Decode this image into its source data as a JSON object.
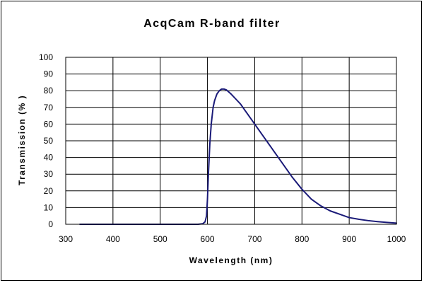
{
  "chart_data": {
    "type": "line",
    "title": "AcqCam R-band filter",
    "xlabel": "Wavelength (nm)",
    "ylabel": "Transmission (% )",
    "xlim": [
      300,
      1000
    ],
    "ylim": [
      0,
      100
    ],
    "xticks": [
      "300",
      "400",
      "500",
      "600",
      "700",
      "800",
      "900",
      "1000"
    ],
    "yticks": [
      "0",
      "10",
      "20",
      "30",
      "40",
      "50",
      "60",
      "70",
      "80",
      "90",
      "100"
    ],
    "grid": true,
    "legend": "none",
    "line_color": "#1a1a78",
    "series": [
      {
        "x": [
          330,
          400,
          500,
          580,
          590,
          595,
          598,
          600,
          602,
          605,
          608,
          612,
          615,
          620,
          625,
          630,
          635,
          640,
          650,
          660,
          670,
          680,
          690,
          700,
          720,
          740,
          760,
          780,
          800,
          820,
          840,
          860,
          880,
          900,
          920,
          940,
          960,
          980,
          1000
        ],
        "y": [
          0,
          0,
          0,
          0,
          0.3,
          1.5,
          5,
          15,
          30,
          48,
          60,
          70,
          74,
          78,
          80,
          81,
          81,
          80.5,
          78,
          75,
          72,
          68,
          64,
          60,
          52,
          44,
          36,
          28,
          21,
          15,
          11,
          8,
          6,
          4,
          3,
          2.2,
          1.6,
          1.1,
          0.7
        ]
      }
    ]
  }
}
